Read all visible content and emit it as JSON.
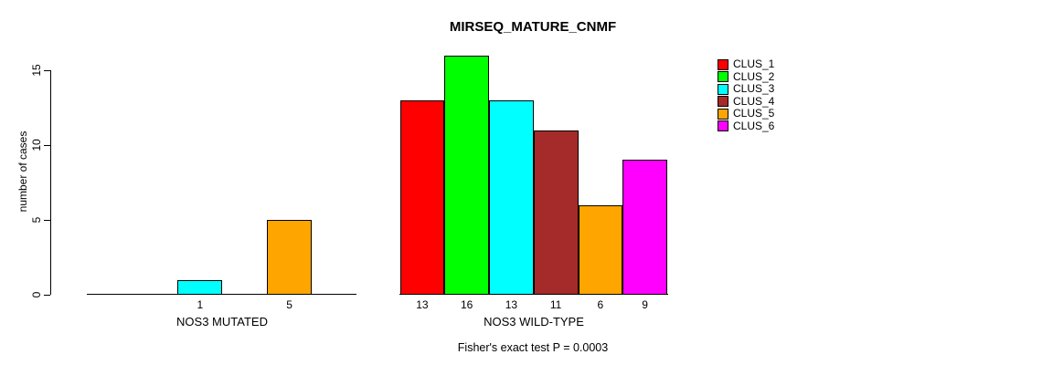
{
  "chart_data": {
    "type": "bar",
    "title": "MIRSEQ_MATURE_CNMF",
    "ylabel": "number of cases",
    "xlabel": "",
    "ylim": [
      0,
      16
    ],
    "yticks": [
      0,
      5,
      10,
      15
    ],
    "grid": false,
    "legend_position": "top-right",
    "series_names": [
      "CLUS_1",
      "CLUS_2",
      "CLUS_3",
      "CLUS_4",
      "CLUS_5",
      "CLUS_6"
    ],
    "series_colors": [
      "#FF0000",
      "#00FF00",
      "#00FFFF",
      "#A52A2A",
      "#FFA500",
      "#FF00FF"
    ],
    "groups": [
      {
        "label": "NOS3 MUTATED",
        "values": [
          0,
          0,
          1,
          0,
          5,
          0
        ],
        "bar_labels": [
          "",
          "",
          "1",
          "",
          "5",
          ""
        ]
      },
      {
        "label": "NOS3 WILD-TYPE",
        "values": [
          13,
          16,
          13,
          11,
          6,
          9
        ],
        "bar_labels": [
          "13",
          "16",
          "13",
          "11",
          "6",
          "9"
        ]
      }
    ],
    "annotation": "Fisher's exact test P = 0.0003"
  },
  "colors": {
    "axis": "#000000",
    "background": "#FFFFFF"
  }
}
